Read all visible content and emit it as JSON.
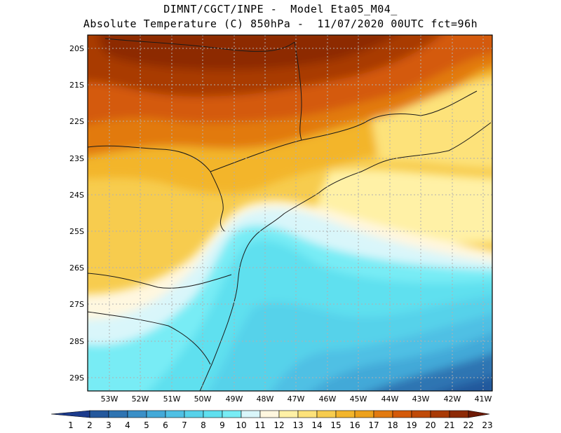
{
  "header": {
    "line1": "DIMNT/CGCT/INPE -  Model Eta05_M04_",
    "line2": "Absolute Temperature (C) 850hPa -  11/07/2020 00UTC fct=96h"
  },
  "map": {
    "lat_labels": [
      "20S",
      "21S",
      "22S",
      "23S",
      "24S",
      "25S",
      "26S",
      "27S",
      "28S",
      "29S"
    ],
    "lon_labels": [
      "53W",
      "52W",
      "51W",
      "50W",
      "49W",
      "48W",
      "47W",
      "46W",
      "45W",
      "44W",
      "43W",
      "42W",
      "41W"
    ]
  },
  "colorbar": {
    "labels": [
      "1",
      "2",
      "3",
      "4",
      "5",
      "6",
      "7",
      "8",
      "9",
      "10",
      "11",
      "12",
      "13",
      "14",
      "15",
      "16",
      "17",
      "18",
      "19",
      "20",
      "21",
      "22",
      "23"
    ],
    "colors": [
      "#1c3b8c",
      "#24589c",
      "#2f74b2",
      "#3a8fc7",
      "#43a9d8",
      "#4fc0e4",
      "#57d2ea",
      "#5fe0ef",
      "#78ecf5",
      "#d9f6fa",
      "#fff7df",
      "#fff1a6",
      "#fde27a",
      "#f7cc4e",
      "#f3b52c",
      "#eda11c",
      "#e27a10",
      "#d45a0a",
      "#c04a08",
      "#a93a06",
      "#8d2a06",
      "#6e1a06"
    ]
  },
  "colors": {
    "frame": "#000000",
    "grid": "#b0b0b0",
    "border": "#1a1a1a"
  }
}
